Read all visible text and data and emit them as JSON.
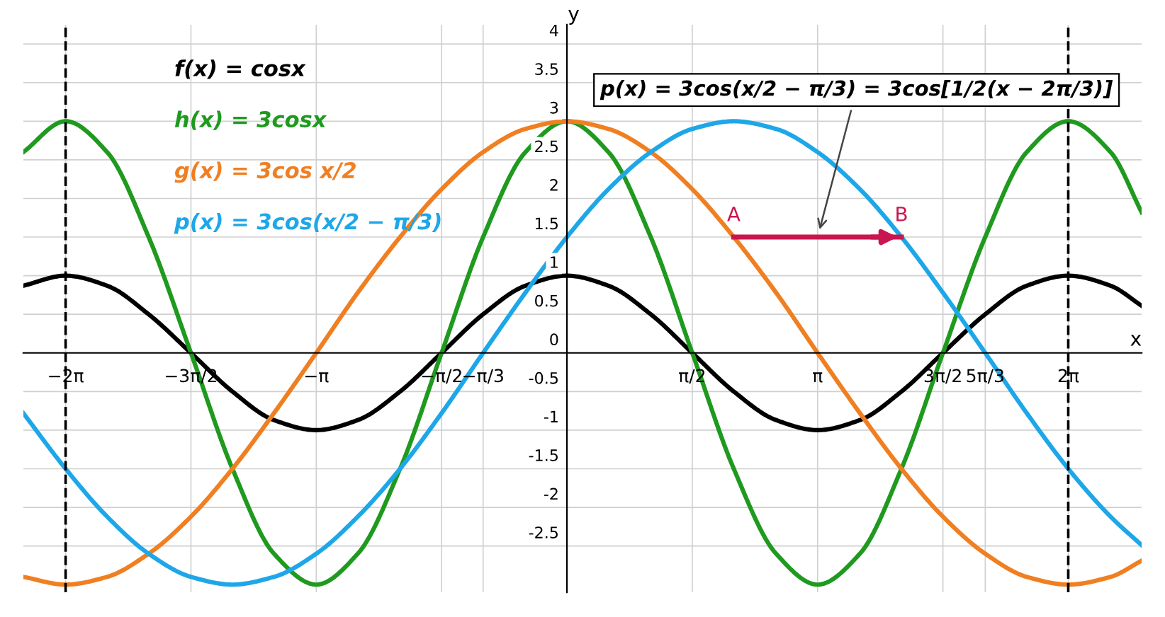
{
  "chart_data": {
    "type": "line",
    "xlabel": "x",
    "ylabel": "y",
    "x": [
      -6.81,
      -6.28,
      -5.76,
      -5.24,
      -4.71,
      -4.19,
      -3.67,
      -3.14,
      -2.62,
      -2.09,
      -1.57,
      -1.05,
      -0.52,
      0,
      0.52,
      1.05,
      1.57,
      2.09,
      2.62,
      3.14,
      3.67,
      4.19,
      4.71,
      5.24,
      5.76,
      6.28,
      6.81,
      7.2
    ],
    "series": [
      {
        "name": "f(x) = cosx",
        "color": "#000000",
        "values": [
          0.87,
          1,
          0.87,
          0.5,
          0,
          -0.5,
          -0.87,
          -1,
          -0.87,
          -0.5,
          0,
          0.5,
          0.87,
          1,
          0.87,
          0.5,
          0,
          -0.5,
          -0.87,
          -1,
          -0.87,
          -0.5,
          0,
          0.5,
          0.87,
          1,
          0.87,
          0.61
        ]
      },
      {
        "name": "h(x) = 3cosx",
        "color": "#1f9a1f",
        "values": [
          2.6,
          3,
          2.6,
          1.5,
          0,
          -1.5,
          -2.6,
          -3,
          -2.6,
          -1.5,
          0,
          1.5,
          2.6,
          3,
          2.6,
          1.5,
          0,
          -1.5,
          -2.6,
          -3,
          -2.6,
          -1.5,
          0,
          1.5,
          2.6,
          3,
          2.6,
          1.82
        ]
      },
      {
        "name": "g(x) = 3cos x/2",
        "color": "#f07f22",
        "values": [
          -2.9,
          -3,
          -2.9,
          -2.6,
          -2.12,
          -1.5,
          -0.78,
          0,
          0.78,
          1.5,
          2.12,
          2.6,
          2.9,
          3,
          2.9,
          2.6,
          2.12,
          1.5,
          0.78,
          0,
          -0.78,
          -1.5,
          -2.12,
          -2.6,
          -2.9,
          -3,
          -2.9,
          -2.69
        ]
      },
      {
        "name": "p(x) = 3cos(x/2 − π/3)",
        "color": "#1ea7e8",
        "values": [
          -0.78,
          -1.5,
          -2.12,
          -2.6,
          -2.9,
          -3,
          -2.9,
          -2.6,
          -2.12,
          -1.5,
          -0.78,
          0,
          0.78,
          1.5,
          2.12,
          2.6,
          2.9,
          3,
          2.9,
          2.6,
          2.12,
          1.5,
          0.78,
          0,
          -0.78,
          -1.5,
          -2.12,
          -2.49
        ]
      },
      {
        "color": "#c8174f",
        "x": [
          2.09,
          4.19
        ],
        "values": [
          1.5,
          1.5
        ]
      }
    ],
    "xlim": [
      -6.81,
      7.2
    ],
    "ylim": [
      -3.1,
      4.25
    ],
    "xticks": [
      {
        "value": -6.28,
        "label": "−2π"
      },
      {
        "value": -4.71,
        "label": "−3π/2"
      },
      {
        "value": -3.14,
        "label": "−π"
      },
      {
        "value": -1.57,
        "label": "−π/2"
      },
      {
        "value": -1.05,
        "label": "−π/3"
      },
      {
        "value": 1.57,
        "label": "π/2"
      },
      {
        "value": 3.14,
        "label": "π"
      },
      {
        "value": 4.71,
        "label": "3π/2"
      },
      {
        "value": 5.24,
        "label": "5π/3"
      },
      {
        "value": 6.28,
        "label": "2π"
      }
    ],
    "yticks": [
      -2.5,
      -2,
      -1.5,
      -1,
      -0.5,
      0,
      0.5,
      1,
      1.5,
      2,
      2.5,
      3,
      3.5,
      4
    ],
    "ref_lines": [
      {
        "axis": "x",
        "value": -6.28,
        "line_style": "dashed",
        "color": "#000000"
      },
      {
        "axis": "x",
        "value": 6.28,
        "line_style": "dashed",
        "color": "#000000"
      }
    ],
    "annotations": [
      {
        "text": "A",
        "x": 2.09,
        "y": 1.5
      },
      {
        "text": "B",
        "x": 4.19,
        "y": 1.5
      },
      "p(x) = 3cos(x/2 − π/3) = 3cos[1/2(x − 2π/3)]"
    ],
    "grid": true,
    "legend": false,
    "marker": "none",
    "line_style": "solid"
  }
}
